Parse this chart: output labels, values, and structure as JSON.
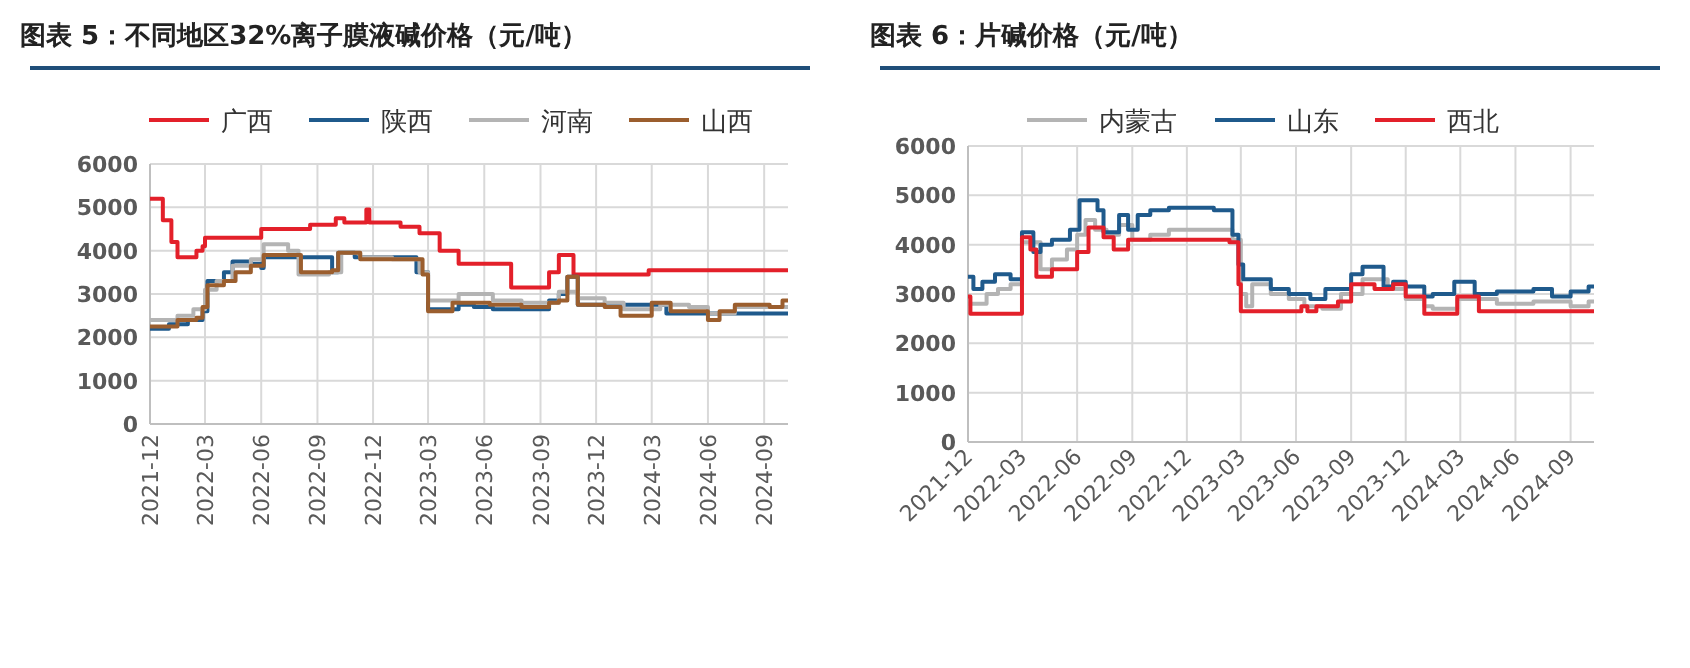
{
  "chart_data": [
    {
      "type": "step",
      "title": "图表 5：不同地区32%离子膜液碱价格（元/吨）",
      "xlim": [
        "2021-12",
        "2024-10-10"
      ],
      "xticks": [
        "2021-12",
        "2022-03",
        "2022-06",
        "2022-09",
        "2022-12",
        "2023-03",
        "2023-06",
        "2023-09",
        "2023-12",
        "2024-03",
        "2024-06",
        "2024-09"
      ],
      "ylim": [
        0,
        6000
      ],
      "yticks": [
        0,
        1000,
        2000,
        3000,
        4000,
        5000,
        6000
      ],
      "grid": true,
      "legend": "top",
      "series": [
        {
          "name": "广西",
          "color": "#e3202a",
          "x": [
            "2021-12-01",
            "2021-12-22",
            "2022-01-05",
            "2022-01-15",
            "2022-01-25",
            "2022-02-15",
            "2022-02-25",
            "2022-03-01",
            "2022-06-01",
            "2022-08-20",
            "2022-10-01",
            "2022-10-15",
            "2022-11-20",
            "2022-11-25",
            "2022-12-01",
            "2023-01-15",
            "2023-02-15",
            "2023-03-20",
            "2023-04-20",
            "2023-07-15",
            "2023-09-15",
            "2023-10-01",
            "2023-10-25",
            "2024-02-25",
            "2024-10-10"
          ],
          "values": [
            5200,
            4700,
            4200,
            3850,
            3850,
            4000,
            4100,
            4300,
            4500,
            4600,
            4750,
            4650,
            4950,
            4650,
            4650,
            4550,
            4400,
            4000,
            3700,
            3150,
            3500,
            3900,
            3450,
            3550,
            3550
          ]
        },
        {
          "name": "陕西",
          "color": "#1f5a8c",
          "x": [
            "2021-12-01",
            "2022-01-01",
            "2022-02-01",
            "2022-02-25",
            "2022-03-05",
            "2022-04-01",
            "2022-04-15",
            "2022-05-15",
            "2022-06-01",
            "2022-06-05",
            "2022-08-01",
            "2022-09-25",
            "2022-10-05",
            "2022-11-01",
            "2023-02-01",
            "2023-02-10",
            "2023-03-01",
            "2023-04-20",
            "2023-05-15",
            "2023-06-15",
            "2023-09-01",
            "2023-09-15",
            "2023-10-01",
            "2023-10-15",
            "2023-11-01",
            "2024-03-25",
            "2024-10-10"
          ],
          "values": [
            2200,
            2300,
            2400,
            2600,
            3300,
            3500,
            3750,
            3700,
            3600,
            3850,
            3850,
            3500,
            3950,
            3850,
            3850,
            3500,
            2650,
            2750,
            2700,
            2650,
            2650,
            2850,
            3000,
            3400,
            2750,
            2550,
            2550
          ]
        },
        {
          "name": "河南",
          "color": "#b4b4b4",
          "x": [
            "2021-12-01",
            "2022-01-15",
            "2022-02-10",
            "2022-03-01",
            "2022-03-20",
            "2022-04-15",
            "2022-05-15",
            "2022-06-05",
            "2022-07-15",
            "2022-08-01",
            "2022-09-20",
            "2022-10-10",
            "2022-11-10",
            "2023-01-01",
            "2023-02-15",
            "2023-03-01",
            "2023-04-20",
            "2023-06-15",
            "2023-08-01",
            "2023-10-01",
            "2023-11-01",
            "2023-12-15",
            "2024-01-15",
            "2024-03-15",
            "2024-05-01",
            "2024-06-01",
            "2024-07-15",
            "2024-10-10"
          ],
          "values": [
            2400,
            2500,
            2650,
            3100,
            3300,
            3650,
            3800,
            4150,
            4000,
            3450,
            3500,
            3950,
            3850,
            3800,
            3500,
            2850,
            3000,
            2850,
            2800,
            3050,
            2900,
            2800,
            2650,
            2750,
            2700,
            2550,
            2700,
            2700
          ]
        },
        {
          "name": "山西",
          "color": "#9b5e2e",
          "x": [
            "2021-12-01",
            "2022-01-15",
            "2022-02-15",
            "2022-02-25",
            "2022-03-05",
            "2022-04-01",
            "2022-04-20",
            "2022-05-15",
            "2022-06-05",
            "2022-08-05",
            "2022-09-25",
            "2022-10-05",
            "2022-11-10",
            "2023-02-20",
            "2023-03-01",
            "2023-04-10",
            "2023-06-10",
            "2023-08-01",
            "2023-09-15",
            "2023-10-01",
            "2023-10-15",
            "2023-11-01",
            "2023-12-15",
            "2024-01-10",
            "2024-03-01",
            "2024-04-01",
            "2024-06-01",
            "2024-06-20",
            "2024-07-15",
            "2024-09-10",
            "2024-10-01",
            "2024-10-10"
          ],
          "values": [
            2250,
            2400,
            2450,
            2700,
            3200,
            3300,
            3500,
            3650,
            3900,
            3500,
            3550,
            3950,
            3800,
            3450,
            2600,
            2800,
            2750,
            2700,
            2800,
            2850,
            3400,
            2750,
            2700,
            2500,
            2800,
            2600,
            2400,
            2600,
            2750,
            2700,
            2850,
            2850
          ]
        }
      ]
    },
    {
      "type": "step",
      "title": "图表 6：片碱价格（元/吨）",
      "xlim": [
        "2021-12",
        "2024-10-10"
      ],
      "xticks": [
        "2021-12",
        "2022-03",
        "2022-06",
        "2022-09",
        "2022-12",
        "2023-03",
        "2023-06",
        "2023-09",
        "2023-12",
        "2024-03",
        "2024-06",
        "2024-09"
      ],
      "ylim": [
        0,
        6000
      ],
      "yticks": [
        0,
        1000,
        2000,
        3000,
        4000,
        5000,
        6000
      ],
      "grid": true,
      "legend": "top",
      "series": [
        {
          "name": "内蒙古",
          "color": "#b4b4b4",
          "x": [
            "2021-12-01",
            "2022-01-01",
            "2022-01-20",
            "2022-02-10",
            "2022-03-01",
            "2022-04-01",
            "2022-04-20",
            "2022-05-15",
            "2022-06-01",
            "2022-06-15",
            "2022-07-01",
            "2022-07-20",
            "2022-08-10",
            "2022-09-01",
            "2022-10-01",
            "2022-11-01",
            "2023-02-15",
            "2023-03-01",
            "2023-03-10",
            "2023-03-20",
            "2023-04-20",
            "2023-05-20",
            "2023-06-15",
            "2023-07-15",
            "2023-08-15",
            "2023-09-20",
            "2023-11-01",
            "2023-12-01",
            "2024-01-01",
            "2024-01-15",
            "2024-02-25",
            "2024-05-01",
            "2024-07-01",
            "2024-09-01",
            "2024-10-01",
            "2024-10-10"
          ],
          "values": [
            2800,
            3000,
            3100,
            3200,
            4050,
            3500,
            3700,
            3900,
            4200,
            4500,
            4300,
            4200,
            4400,
            4100,
            4200,
            4300,
            4100,
            3000,
            2750,
            3200,
            3000,
            2900,
            2750,
            2700,
            3000,
            3300,
            3100,
            2900,
            2750,
            2700,
            2900,
            2800,
            2850,
            2750,
            2850,
            2850
          ]
        },
        {
          "name": "山东",
          "color": "#1f5a8c",
          "x": [
            "2021-12-01",
            "2021-12-10",
            "2021-12-25",
            "2022-01-15",
            "2022-02-10",
            "2022-03-01",
            "2022-03-20",
            "2022-04-01",
            "2022-04-20",
            "2022-05-20",
            "2022-06-05",
            "2022-07-05",
            "2022-07-15",
            "2022-08-10",
            "2022-08-25",
            "2022-09-10",
            "2022-10-01",
            "2022-11-01",
            "2023-01-15",
            "2023-02-15",
            "2023-02-25",
            "2023-03-05",
            "2023-04-20",
            "2023-05-20",
            "2023-06-25",
            "2023-07-20",
            "2023-09-01",
            "2023-09-20",
            "2023-10-25",
            "2023-11-10",
            "2023-12-01",
            "2024-01-01",
            "2024-01-15",
            "2024-02-20",
            "2024-03-25",
            "2024-05-01",
            "2024-07-01",
            "2024-08-01",
            "2024-09-01",
            "2024-10-01",
            "2024-10-10"
          ],
          "values": [
            3350,
            3100,
            3250,
            3400,
            3300,
            4250,
            3850,
            4000,
            4100,
            4300,
            4900,
            4700,
            4250,
            4600,
            4300,
            4600,
            4700,
            4750,
            4700,
            4200,
            3600,
            3300,
            3100,
            3000,
            2900,
            3100,
            3400,
            3550,
            3150,
            3250,
            3150,
            2950,
            3000,
            3250,
            3000,
            3050,
            3100,
            2950,
            3050,
            3150,
            3150
          ]
        },
        {
          "name": "西北",
          "color": "#e3202a",
          "x": [
            "2021-12-01",
            "2021-12-05",
            "2022-03-01",
            "2022-03-15",
            "2022-03-25",
            "2022-04-20",
            "2022-06-01",
            "2022-06-20",
            "2022-07-15",
            "2022-08-01",
            "2022-08-25",
            "2023-02-10",
            "2023-02-25",
            "2023-03-01",
            "2023-06-10",
            "2023-06-20",
            "2023-07-05",
            "2023-08-10",
            "2023-09-01",
            "2023-10-10",
            "2023-11-10",
            "2023-12-01",
            "2024-01-01",
            "2024-02-25",
            "2024-04-01",
            "2024-10-10"
          ],
          "values": [
            2950,
            2600,
            4150,
            3900,
            3350,
            3500,
            3850,
            4350,
            4150,
            3900,
            4100,
            4050,
            3200,
            2650,
            2750,
            2650,
            2750,
            2850,
            3200,
            3100,
            3200,
            2950,
            2600,
            2950,
            2650,
            2650
          ]
        }
      ]
    }
  ]
}
